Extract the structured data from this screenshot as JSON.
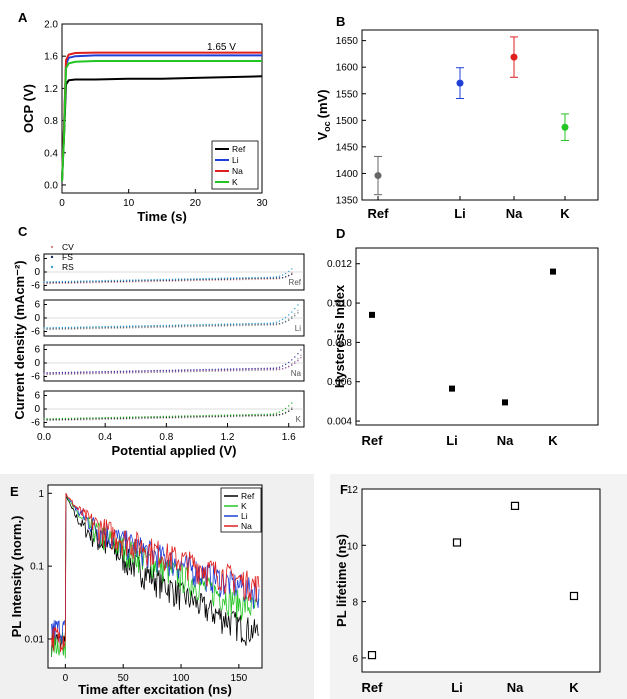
{
  "chart_data": [
    {
      "panel": "A",
      "type": "line",
      "xlabel": "Time (s)",
      "ylabel": "OCP (V)",
      "annotation": "1.65 V",
      "xlim": [
        0,
        30
      ],
      "ylim": [
        -0.1,
        2.0
      ],
      "xticks": [
        "0",
        "10",
        "20",
        "30"
      ],
      "yticks": [
        "0.0",
        "0.4",
        "0.8",
        "1.2",
        "1.6",
        "2.0"
      ],
      "legend": "bottom-right",
      "series": [
        {
          "name": "Ref",
          "color": "#000000",
          "x": [
            0,
            0.3,
            0.6,
            1,
            2,
            5,
            10,
            15,
            20,
            25,
            30
          ],
          "y": [
            0.05,
            0.6,
            1.25,
            1.3,
            1.31,
            1.31,
            1.32,
            1.32,
            1.33,
            1.34,
            1.35
          ]
        },
        {
          "name": "Li",
          "color": "#1f3fd6",
          "x": [
            0,
            0.3,
            0.6,
            1,
            2,
            5,
            10,
            15,
            20,
            25,
            30
          ],
          "y": [
            0.05,
            0.7,
            1.5,
            1.58,
            1.6,
            1.61,
            1.61,
            1.61,
            1.61,
            1.61,
            1.61
          ]
        },
        {
          "name": "Na",
          "color": "#e01f1f",
          "x": [
            0,
            0.3,
            0.6,
            1,
            2,
            5,
            10,
            15,
            20,
            25,
            30
          ],
          "y": [
            0.05,
            0.7,
            1.55,
            1.62,
            1.64,
            1.645,
            1.645,
            1.645,
            1.645,
            1.645,
            1.645
          ]
        },
        {
          "name": "K",
          "color": "#22c522",
          "x": [
            0,
            0.3,
            0.6,
            1,
            2,
            5,
            10,
            15,
            20,
            25,
            30
          ],
          "y": [
            0.05,
            0.6,
            1.45,
            1.51,
            1.53,
            1.54,
            1.54,
            1.54,
            1.54,
            1.54,
            1.54
          ]
        }
      ]
    },
    {
      "panel": "B",
      "type": "scatter",
      "ylabel_main": "V",
      "ylabel_sub": "oc",
      "ylabel_unit": "(mV)",
      "ylim": [
        1350,
        1670
      ],
      "yticks": [
        "1350",
        "1400",
        "1450",
        "1500",
        "1550",
        "1600",
        "1650"
      ],
      "categories": [
        "Ref",
        "Li",
        "Na",
        "K"
      ],
      "values": [
        1396,
        1570,
        1619,
        1487
      ],
      "errors": [
        36,
        29,
        38,
        25
      ],
      "colors": [
        "#666666",
        "#1f3fd6",
        "#e01f1f",
        "#22c522"
      ]
    },
    {
      "panel": "C",
      "type": "scatter",
      "xlabel": "Potential applied (V)",
      "ylabel": "Current density (mAcm⁻²)",
      "xlim": [
        0,
        1.7
      ],
      "xticks": [
        "0.0",
        "0.4",
        "0.8",
        "1.2",
        "1.6"
      ],
      "yticks": [
        "6",
        "0",
        "-6"
      ],
      "legend": [
        "CV",
        "FS",
        "RS"
      ],
      "subplots": [
        {
          "label": "Ref",
          "colors": [
            "#d88a8a",
            "#1a2a5a",
            "#3aa0d0"
          ]
        },
        {
          "label": "Li",
          "colors": [
            "#9aa0a6",
            "#5a6066",
            "#2e9fd3"
          ]
        },
        {
          "label": "Na",
          "colors": [
            "#8a9090",
            "#a44aa8",
            "#3a3aa0"
          ]
        },
        {
          "label": "K",
          "colors": [
            "#b0b0b0",
            "#222222",
            "#2ab02a"
          ]
        }
      ]
    },
    {
      "panel": "D",
      "type": "scatter",
      "ylabel": "Hysteresis Index",
      "ylim": [
        0.0038,
        0.0128
      ],
      "yticks": [
        "0.004",
        "0.006",
        "0.008",
        "0.010",
        "0.012"
      ],
      "categories": [
        "Ref",
        "Li",
        "Na",
        "K"
      ],
      "values": [
        0.0094,
        0.00565,
        0.00495,
        0.0116
      ]
    },
    {
      "panel": "E",
      "type": "line",
      "xlabel": "Time after excitation (ns)",
      "ylabel": "PL Intensity (norm.)",
      "yscale": "log",
      "xlim": [
        -15,
        170
      ],
      "ylim": [
        0.004,
        1.3
      ],
      "xticks": [
        "0",
        "50",
        "100",
        "150"
      ],
      "yticks": [
        "0.01",
        "0.1",
        "1"
      ],
      "legend": "top-right",
      "series": [
        {
          "name": "Ref",
          "color": "#000000",
          "tau": 6.1
        },
        {
          "name": "K",
          "color": "#22c522",
          "tau": 8.2
        },
        {
          "name": "Li",
          "color": "#1f3fd6",
          "tau": 10.1
        },
        {
          "name": "Na",
          "color": "#e01f1f",
          "tau": 11.4
        }
      ]
    },
    {
      "panel": "F",
      "type": "scatter",
      "ylabel": "PL lifetime (ns)",
      "ylim": [
        5.5,
        12
      ],
      "yticks": [
        "6",
        "8",
        "10",
        "12"
      ],
      "categories": [
        "Ref",
        "Li",
        "Na",
        "K"
      ],
      "values": [
        6.1,
        10.1,
        11.4,
        8.2
      ]
    }
  ]
}
